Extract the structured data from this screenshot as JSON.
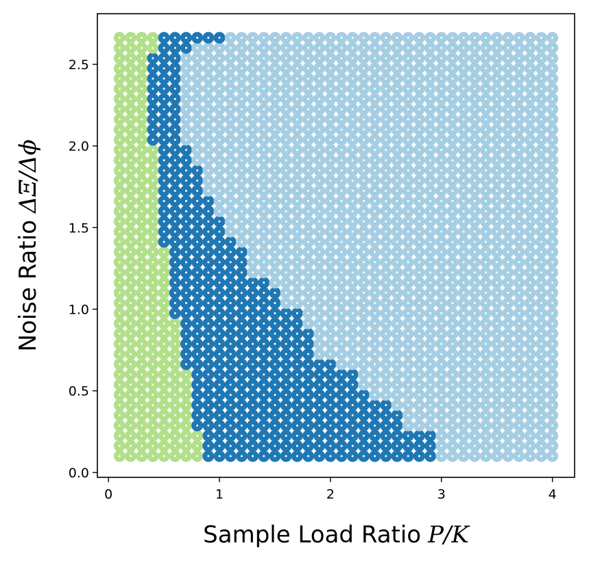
{
  "chart_data": {
    "type": "scatter",
    "title": "",
    "xlabel": {
      "text": "Sample Load Ratio",
      "math": "P/K"
    },
    "ylabel": {
      "text": "Noise Ratio",
      "math": "ΔΞ/Δϕ"
    },
    "xlim": [
      -0.1,
      4.2
    ],
    "ylim": [
      -0.03,
      2.81
    ],
    "xticks": [
      {
        "value": 0,
        "label": "0"
      },
      {
        "value": 1,
        "label": "1"
      },
      {
        "value": 2,
        "label": "2"
      },
      {
        "value": 3,
        "label": "3"
      },
      {
        "value": 4,
        "label": "4"
      }
    ],
    "yticks": [
      {
        "value": 0.0,
        "label": "0.0"
      },
      {
        "value": 0.5,
        "label": "0.5"
      },
      {
        "value": 1.0,
        "label": "1.0"
      },
      {
        "value": 1.5,
        "label": "1.5"
      },
      {
        "value": 2.0,
        "label": "2.0"
      },
      {
        "value": 2.5,
        "label": "2.5"
      }
    ],
    "grid": false,
    "legend": "none",
    "x_grid": {
      "start": 0.1,
      "end": 4.0,
      "step": 0.1
    },
    "y_grid": {
      "start": 0.1,
      "end": 2.675,
      "step": 0.0625
    },
    "colors": {
      "region_low_load": "#b2df8a",
      "region_mid": "#1f78b4",
      "region_high_load": "#a6cee3",
      "inner_marker": "#ffffff",
      "axes": "#000000"
    },
    "regions": {
      "description_rule": "for each row (y value): points with x <= low_max are region_low_load, x <= mid_max are region_mid, otherwise region_high_load",
      "rows": [
        {
          "y_max": 0.225,
          "low_max": 0.8,
          "mid_max": 2.9
        },
        {
          "y_max": 0.26,
          "low_max": 0.8,
          "mid_max": 2.8
        },
        {
          "y_max": 0.35,
          "low_max": 0.7,
          "mid_max": 2.6
        },
        {
          "y_max": 0.45,
          "low_max": 0.7,
          "mid_max": 2.5
        },
        {
          "y_max": 0.52,
          "low_max": 0.7,
          "mid_max": 2.3
        },
        {
          "y_max": 0.6,
          "low_max": 0.7,
          "mid_max": 2.2
        },
        {
          "y_max": 0.72,
          "low_max": 0.6,
          "mid_max": 2.0
        },
        {
          "y_max": 0.85,
          "low_max": 0.6,
          "mid_max": 1.8
        },
        {
          "y_max": 0.96,
          "low_max": 0.6,
          "mid_max": 1.7
        },
        {
          "y_max": 0.99,
          "low_max": 0.5,
          "mid_max": 1.7
        },
        {
          "y_max": 1.11,
          "low_max": 0.5,
          "mid_max": 1.5
        },
        {
          "y_max": 1.17,
          "low_max": 0.5,
          "mid_max": 1.4
        },
        {
          "y_max": 1.36,
          "low_max": 0.5,
          "mid_max": 1.2
        },
        {
          "y_max": 1.47,
          "low_max": 0.4,
          "mid_max": 1.1
        },
        {
          "y_max": 1.55,
          "low_max": 0.4,
          "mid_max": 1.0
        },
        {
          "y_max": 1.7,
          "low_max": 0.4,
          "mid_max": 0.9
        },
        {
          "y_max": 1.88,
          "low_max": 0.4,
          "mid_max": 0.8
        },
        {
          "y_max": 1.99,
          "low_max": 0.4,
          "mid_max": 0.7
        },
        {
          "y_max": 2.01,
          "low_max": 0.3,
          "mid_max": 0.7
        },
        {
          "y_max": 2.56,
          "low_max": 0.3,
          "mid_max": 0.6
        },
        {
          "y_max": 2.63,
          "low_max": 0.4,
          "mid_max": 0.7
        },
        {
          "y_max": 2.7,
          "low_max": 0.4,
          "mid_max": 1.0
        }
      ]
    }
  }
}
